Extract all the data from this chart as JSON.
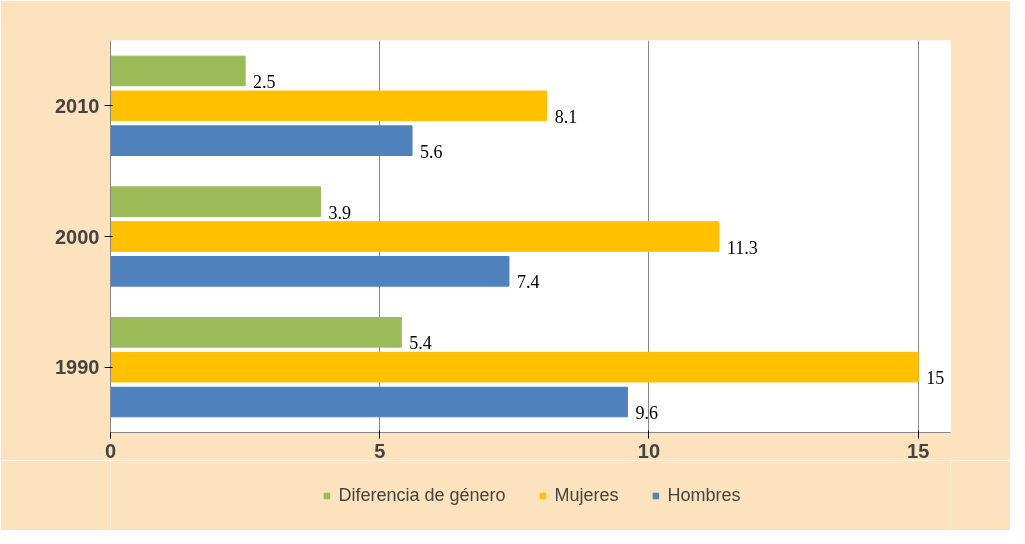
{
  "chart_data": {
    "type": "bar",
    "orientation": "horizontal",
    "categories": [
      "2010",
      "2000",
      "1990"
    ],
    "series": [
      {
        "name": "Diferencia de género",
        "color": "#9bbb59",
        "values": [
          2.5,
          3.9,
          5.4
        ]
      },
      {
        "name": "Mujeres",
        "color": "#ffc000",
        "values": [
          8.1,
          11.3,
          15
        ]
      },
      {
        "name": "Hombres",
        "color": "#4f81bd",
        "values": [
          5.6,
          7.4,
          9.6
        ]
      }
    ],
    "xlim": [
      0,
      15.6
    ],
    "xticks": [
      0,
      5,
      10,
      15
    ],
    "grid": "x",
    "legend": "bottom",
    "data_labels": true
  }
}
